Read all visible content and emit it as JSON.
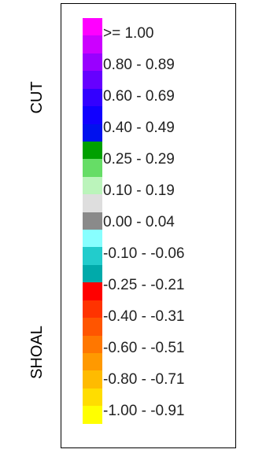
{
  "side_labels": {
    "cut": "CUT",
    "shoal": "SHOAL"
  },
  "swatches": [
    {
      "color": "#ff00ff"
    },
    {
      "color": "#cc00ff"
    },
    {
      "color": "#9900ff"
    },
    {
      "color": "#6600ff"
    },
    {
      "color": "#3300ff"
    },
    {
      "color": "#1100ff"
    },
    {
      "color": "#0011ee"
    },
    {
      "color": "#00a000"
    },
    {
      "color": "#66dd66"
    },
    {
      "color": "#bbf4bb"
    },
    {
      "color": "#dedede"
    },
    {
      "color": "#8a8a8a"
    },
    {
      "color": "#88ffff"
    },
    {
      "color": "#22cccc"
    },
    {
      "color": "#00aaaa"
    },
    {
      "color": "#ff0000"
    },
    {
      "color": "#ff3300"
    },
    {
      "color": "#ff5500"
    },
    {
      "color": "#ff7700"
    },
    {
      "color": "#ff9900"
    },
    {
      "color": "#ffbb00"
    },
    {
      "color": "#ffdd00"
    },
    {
      "color": "#ffff00"
    }
  ],
  "range_labels": [
    ">= 1.00",
    "0.80 - 0.89",
    "0.60 - 0.69",
    "0.40 - 0.49",
    "0.25 - 0.29",
    "0.10 - 0.19",
    "0.00 - 0.04",
    "-0.10 - -0.06",
    "-0.25 - -0.21",
    "-0.40 - -0.31",
    "-0.60 - -0.51",
    "-0.80 - -0.71",
    "-1.00 - -0.91"
  ]
}
